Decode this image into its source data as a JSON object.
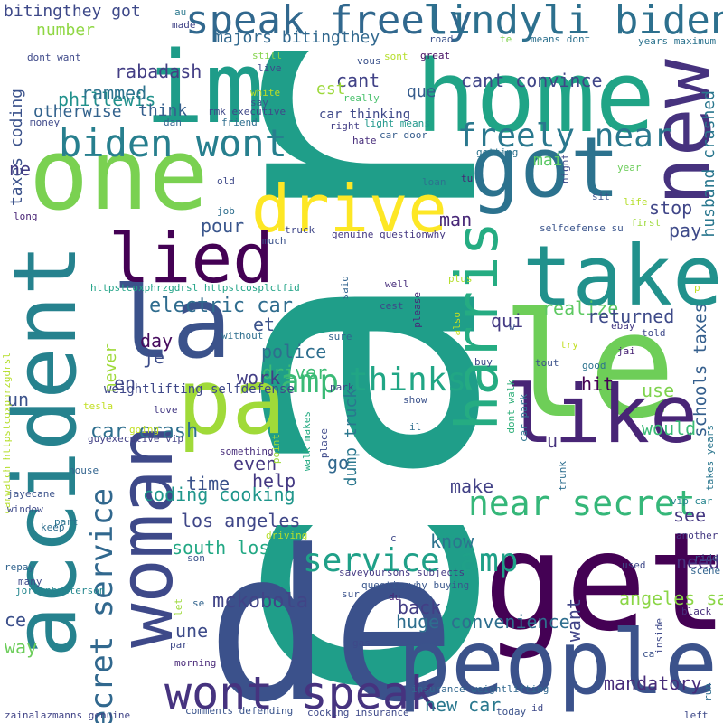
{
  "words": [
    {
      "text": "car",
      "color": "#1f9e89"
    },
    {
      "text": "de",
      "color": "#3b518b"
    },
    {
      "text": "get",
      "color": "#440154"
    },
    {
      "text": "le",
      "color": "#6ece58"
    },
    {
      "text": "home",
      "color": "#20a486"
    },
    {
      "text": "people",
      "color": "#3b528b"
    },
    {
      "text": "accident",
      "color": "#26828e"
    },
    {
      "text": "one",
      "color": "#7ad151"
    },
    {
      "text": "got",
      "color": "#2c728e"
    },
    {
      "text": "im",
      "color": "#1e9c89"
    },
    {
      "text": "la",
      "color": "#3b528b"
    },
    {
      "text": "woman",
      "color": "#3e4989"
    },
    {
      "text": "like",
      "color": "#482576"
    },
    {
      "text": "take",
      "color": "#21918c"
    },
    {
      "text": "pa",
      "color": "#a0da39"
    },
    {
      "text": "new",
      "color": "#46327e"
    },
    {
      "text": "drive",
      "color": "#fde725"
    },
    {
      "text": "lied",
      "color": "#440154"
    },
    {
      "text": "harris",
      "color": "#25ac82"
    },
    {
      "text": "wont speak",
      "color": "#46337f"
    },
    {
      "text": "speak freely",
      "color": "#31688e"
    },
    {
      "text": "lindyli biden",
      "color": "#2d708e"
    },
    {
      "text": "biden wont",
      "color": "#277f8e"
    },
    {
      "text": "near secret",
      "color": "#35b779"
    },
    {
      "text": "service amp",
      "color": "#1fa088"
    },
    {
      "text": "freely near",
      "color": "#2a788e"
    },
    {
      "text": "amp",
      "color": "#3aba76"
    },
    {
      "text": "thinks",
      "color": "#21a685"
    },
    {
      "text": "secret service",
      "color": "#31688e"
    },
    {
      "text": "mckobola",
      "color": "#414487"
    },
    {
      "text": "electric car",
      "color": "#2f6c8e"
    },
    {
      "text": "car crash",
      "color": "#2e6f8e"
    },
    {
      "text": "coding cooking",
      "color": "#1f968b"
    },
    {
      "text": "los angeles",
      "color": "#3f4788"
    },
    {
      "text": "south los",
      "color": "#22a884"
    },
    {
      "text": "husband crashed",
      "color": "#2a778e"
    },
    {
      "text": "schools taxes",
      "color": "#355f8d"
    },
    {
      "text": "huge convenience",
      "color": "#2e6e8e"
    },
    {
      "text": "angeles says",
      "color": "#8bd646"
    },
    {
      "text": "mandatory",
      "color": "#472c7a"
    },
    {
      "text": "new car",
      "color": "#2a788e"
    },
    {
      "text": "cant convince",
      "color": "#404688"
    },
    {
      "text": "majors bitingthey",
      "color": "#31688e"
    },
    {
      "text": "bitingthey got",
      "color": "#3e4989"
    },
    {
      "text": "rabadash",
      "color": "#433e85"
    },
    {
      "text": "phillewis",
      "color": "#21918c"
    },
    {
      "text": "rammed",
      "color": "#2c738e"
    },
    {
      "text": "otherwise",
      "color": "#33638d"
    },
    {
      "text": "think",
      "color": "#355f8d"
    },
    {
      "text": "number",
      "color": "#8fd744"
    },
    {
      "text": "taxes coding",
      "color": "#3b528b"
    },
    {
      "text": "cant",
      "color": "#414287"
    },
    {
      "text": "est",
      "color": "#9dd93b"
    },
    {
      "text": "que",
      "color": "#365c8d"
    },
    {
      "text": "car thinking",
      "color": "#3e4989"
    },
    {
      "text": "dump truck",
      "color": "#2a778e"
    },
    {
      "text": "realize",
      "color": "#5ec962"
    },
    {
      "text": "returned",
      "color": "#3e4a89"
    },
    {
      "text": "qui",
      "color": "#443a83"
    },
    {
      "text": "police",
      "color": "#2e6e8e"
    },
    {
      "text": "driver",
      "color": "#3dbc74"
    },
    {
      "text": "work",
      "color": "#433e85"
    },
    {
      "text": "weightlifting selfdefense",
      "color": "#3f4889"
    },
    {
      "text": "hit",
      "color": "#440154"
    },
    {
      "text": "use",
      "color": "#7fd34e"
    },
    {
      "text": "would",
      "color": "#3aba76"
    },
    {
      "text": "pay",
      "color": "#3e4a89"
    },
    {
      "text": "stop",
      "color": "#404688"
    },
    {
      "text": "man",
      "color": "#482878"
    },
    {
      "text": "make",
      "color": "#424186"
    },
    {
      "text": "go",
      "color": "#31688e"
    },
    {
      "text": "even",
      "color": "#453781"
    },
    {
      "text": "time",
      "color": "#3b528b"
    },
    {
      "text": "help",
      "color": "#443983"
    },
    {
      "text": "know",
      "color": "#2c738e"
    },
    {
      "text": "back",
      "color": "#433e85"
    },
    {
      "text": "want",
      "color": "#414487"
    },
    {
      "text": "need",
      "color": "#46307e"
    },
    {
      "text": "see",
      "color": "#453882"
    },
    {
      "text": "une",
      "color": "#3e4c8a"
    },
    {
      "text": "pour",
      "color": "#39558c"
    },
    {
      "text": "en",
      "color": "#3f4788"
    },
    {
      "text": "je",
      "color": "#3d4d8a"
    },
    {
      "text": "day",
      "color": "#460b5e"
    },
    {
      "text": "et",
      "color": "#3b528b"
    },
    {
      "text": "un",
      "color": "#3b528b"
    },
    {
      "text": "ne",
      "color": "#433d84"
    },
    {
      "text": "ce",
      "color": "#3c508b"
    },
    {
      "text": "way",
      "color": "#6ccd5a"
    },
    {
      "text": "never",
      "color": "#9fda3a"
    },
    {
      "text": "mai",
      "color": "#5ac864"
    },
    {
      "text": "u",
      "color": "#46327e"
    },
    {
      "text": "httpstcoxphrzgdrsl httpstcosplctfid",
      "color": "#20a386"
    },
    {
      "text": "saveyoursons subjects",
      "color": "#443983"
    },
    {
      "text": "questionwhy buying",
      "color": "#39568c"
    },
    {
      "text": "insurance weightlifting",
      "color": "#31678e"
    },
    {
      "text": "comments defending",
      "color": "#3a548c"
    },
    {
      "text": "cooking insurance",
      "color": "#3e4989"
    },
    {
      "text": "zainalazmanns genuine",
      "color": "#414487"
    },
    {
      "text": "jordanbpeterson",
      "color": "#24878e"
    },
    {
      "text": "jayecane",
      "color": "#3b528b"
    },
    {
      "text": "carwatch httpstcoxphrzgdrsl",
      "color": "#b5de2b"
    },
    {
      "text": "guyexecutive vip",
      "color": "#424086"
    },
    {
      "text": "genuine questionwhy",
      "color": "#453882"
    },
    {
      "text": "selfdefense su",
      "color": "#3a548c"
    },
    {
      "text": "rmk executive",
      "color": "#3f4788"
    },
    {
      "text": "car door",
      "color": "#365d8d"
    },
    {
      "text": "light means",
      "color": "#1f978b"
    },
    {
      "text": "means dont",
      "color": "#2d718e"
    },
    {
      "text": "years maximum",
      "color": "#2c738e"
    },
    {
      "text": "dont want",
      "color": "#3e4989"
    },
    {
      "text": "takes years",
      "color": "#2a768e"
    },
    {
      "text": "vip car",
      "color": "#25858e"
    },
    {
      "text": "car park",
      "color": "#2b748e"
    },
    {
      "text": "dont walk",
      "color": "#30b07a"
    },
    {
      "text": "walk makes",
      "color": "#25ab82"
    },
    {
      "text": "road",
      "color": "#3b528b"
    },
    {
      "text": "great",
      "color": "#471063"
    },
    {
      "text": "sont",
      "color": "#b5de2b"
    },
    {
      "text": "te",
      "color": "#7fd34e"
    },
    {
      "text": "made",
      "color": "#414487"
    },
    {
      "text": "au",
      "color": "#2a788e"
    },
    {
      "text": "still",
      "color": "#84d44b"
    },
    {
      "text": "live",
      "color": "#3e4989"
    },
    {
      "text": "vous",
      "color": "#3b528b"
    },
    {
      "text": "really",
      "color": "#4ac16d"
    },
    {
      "text": "white",
      "color": "#c2df23"
    },
    {
      "text": "say",
      "color": "#3a548c"
    },
    {
      "text": "money",
      "color": "#3e4989"
    },
    {
      "text": "dan",
      "color": "#32648e"
    },
    {
      "text": "friend",
      "color": "#2e6e8e"
    },
    {
      "text": "right",
      "color": "#433e85"
    },
    {
      "text": "hate",
      "color": "#472d7b"
    },
    {
      "text": "getting",
      "color": "#2c738e"
    },
    {
      "text": "night",
      "color": "#3e4989"
    },
    {
      "text": "year",
      "color": "#6ccd5a"
    },
    {
      "text": "tu",
      "color": "#482475"
    },
    {
      "text": "loan",
      "color": "#2c738e"
    },
    {
      "text": "sit",
      "color": "#3b528b"
    },
    {
      "text": "life",
      "color": "#b5de2b"
    },
    {
      "text": "first",
      "color": "#9dd93b"
    },
    {
      "text": "job",
      "color": "#2e6e8e"
    },
    {
      "text": "old",
      "color": "#3e4989"
    },
    {
      "text": "long",
      "color": "#482475"
    },
    {
      "text": "truck",
      "color": "#3f4788"
    },
    {
      "text": "much",
      "color": "#3b528b"
    },
    {
      "text": "said",
      "color": "#32648e"
    },
    {
      "text": "well",
      "color": "#472d7b"
    },
    {
      "text": "cest",
      "color": "#3e4989"
    },
    {
      "text": "please",
      "color": "#482878"
    },
    {
      "text": "plus",
      "color": "#b5de2b"
    },
    {
      "text": "also",
      "color": "#c2df23"
    },
    {
      "text": "w",
      "color": "#3b528b"
    },
    {
      "text": "ebay",
      "color": "#443983"
    },
    {
      "text": "told",
      "color": "#3e4989"
    },
    {
      "text": "without",
      "color": "#2e6e8e"
    },
    {
      "text": "sure",
      "color": "#32648e"
    },
    {
      "text": "try",
      "color": "#c2df23"
    },
    {
      "text": "jai",
      "color": "#482475"
    },
    {
      "text": "tout",
      "color": "#3b528b"
    },
    {
      "text": "good",
      "color": "#2c738e"
    },
    {
      "text": "buy",
      "color": "#3e4989"
    },
    {
      "text": "park",
      "color": "#414487"
    },
    {
      "text": "show",
      "color": "#3b528b"
    },
    {
      "text": "il",
      "color": "#2e6e8e"
    },
    {
      "text": "place",
      "color": "#3e4989"
    },
    {
      "text": "point",
      "color": "#9dd93b"
    },
    {
      "text": "something",
      "color": "#472d7b"
    },
    {
      "text": "tesla",
      "color": "#c2df23"
    },
    {
      "text": "love",
      "color": "#443983"
    },
    {
      "text": "going",
      "color": "#c2df23"
    },
    {
      "text": "house",
      "color": "#32648e"
    },
    {
      "text": "window",
      "color": "#3e4989"
    },
    {
      "text": "part",
      "color": "#2c738e"
    },
    {
      "text": "keep",
      "color": "#2e6e8e"
    },
    {
      "text": "driving",
      "color": "#b5de2b"
    },
    {
      "text": "son",
      "color": "#3b528b"
    },
    {
      "text": "c",
      "color": "#3e4989"
    },
    {
      "text": "repay",
      "color": "#32648e"
    },
    {
      "text": "many",
      "color": "#3e4989"
    },
    {
      "text": "sur",
      "color": "#3b528b"
    },
    {
      "text": "du",
      "color": "#482475"
    },
    {
      "text": "gas",
      "color": "#3e4989"
    },
    {
      "text": "se",
      "color": "#32648e"
    },
    {
      "text": "let",
      "color": "#9dd93b"
    },
    {
      "text": "par",
      "color": "#3e4989"
    },
    {
      "text": "morning",
      "color": "#482878"
    },
    {
      "text": "today",
      "color": "#3b528b"
    },
    {
      "text": "id",
      "color": "#3e4989"
    },
    {
      "text": "left",
      "color": "#3e4989"
    },
    {
      "text": "run",
      "color": "#2e6e8e"
    },
    {
      "text": "ca",
      "color": "#3b528b"
    },
    {
      "text": "inside",
      "color": "#3e4989"
    },
    {
      "text": "black",
      "color": "#472d7b"
    },
    {
      "text": "scene",
      "color": "#32648e"
    },
    {
      "text": "ride",
      "color": "#3b528b"
    },
    {
      "text": "used",
      "color": "#3e4989"
    },
    {
      "text": "another",
      "color": "#443983"
    },
    {
      "text": "trunk",
      "color": "#2e6e8e"
    },
    {
      "text": "p",
      "color": "#c2df23"
    }
  ]
}
